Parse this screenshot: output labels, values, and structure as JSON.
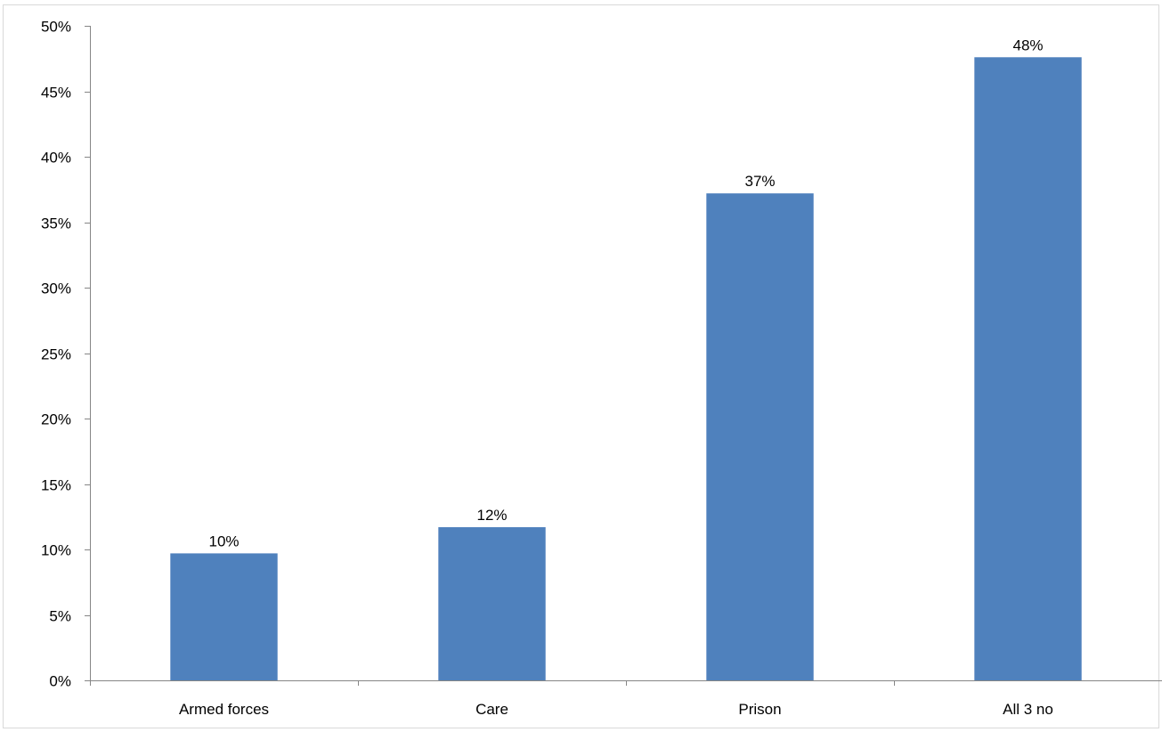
{
  "chart_data": {
    "type": "bar",
    "title": "",
    "xlabel": "",
    "ylabel": "",
    "categories": [
      "Armed forces",
      "Care",
      "Prison",
      "All 3 no"
    ],
    "values": [
      9.7,
      11.7,
      37.2,
      47.6
    ],
    "data_labels": [
      "10%",
      "12%",
      "37%",
      "48%"
    ],
    "ylim": [
      0,
      50
    ],
    "y_ticks": [
      0,
      5,
      10,
      15,
      20,
      25,
      30,
      35,
      40,
      45,
      50
    ],
    "y_tick_labels": [
      "0%",
      "5%",
      "10%",
      "15%",
      "20%",
      "25%",
      "30%",
      "35%",
      "40%",
      "45%",
      "50%"
    ],
    "grid": false,
    "legend": "none",
    "colors": {
      "bar": "#4f81bd",
      "axis": "#868686",
      "frame": "#d9d9d9",
      "text": "#000000"
    }
  }
}
